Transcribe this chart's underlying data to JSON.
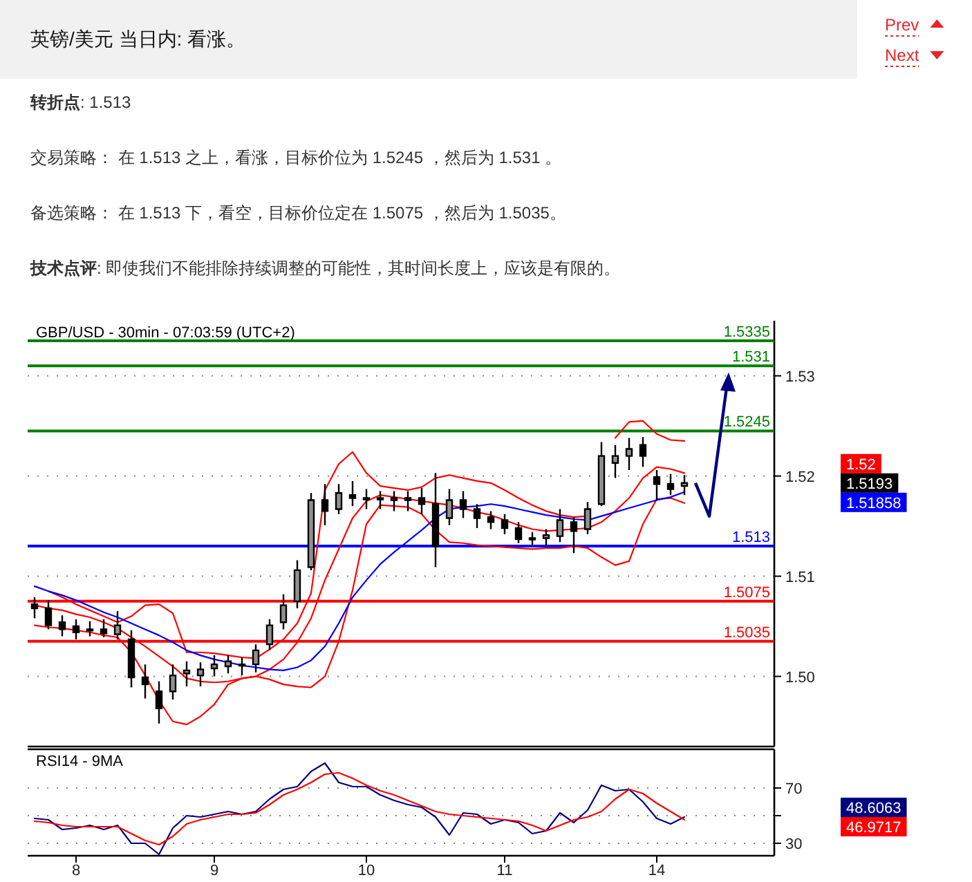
{
  "chart_data": [
    {
      "type": "other",
      "title": "英镑/美元 当日内: 看涨。",
      "annotations": [
        "**转折点**: 1.513",
        "交易策略： 在 1.513 之上，看涨，目标价位为 1.5245 ，然后为 1.531 。",
        "备选策略： 在 1.513 下，看空，目标价位定在 1.5075 ，然后为 1.5035。",
        "**技术点评**: 即使我们不能排除持续调整的可能性，其时间长度上，应该是有限的。"
      ]
    },
    {
      "type": "other",
      "annotations": [
        "Prev",
        "Next"
      ]
    },
    {
      "type": "candlestick",
      "title": "GBP/USD - 30min - 07:03:59 (UTC+2)",
      "color": "#000000",
      "categories": [
        null,
        null,
        null,
        null,
        null,
        null,
        null,
        null,
        null,
        null,
        null,
        null,
        null,
        null,
        null,
        null,
        null,
        null,
        null,
        null,
        null,
        null,
        null,
        null,
        null,
        null,
        null,
        null,
        null,
        null,
        null,
        null,
        null,
        null,
        null,
        null,
        null,
        null,
        null,
        null,
        null,
        null,
        null,
        null,
        null,
        null,
        null,
        null
      ],
      "ohlc": [
        [
          1.5072,
          1.5079,
          1.5058,
          1.5068
        ],
        [
          1.5068,
          1.5076,
          1.5047,
          1.5051
        ],
        [
          1.5054,
          1.5061,
          1.504,
          1.5047
        ],
        [
          1.505,
          1.5057,
          1.5037,
          1.5044
        ],
        [
          1.5047,
          1.5055,
          1.504,
          1.5046
        ],
        [
          1.5047,
          1.5057,
          1.5039,
          1.5043
        ],
        [
          1.5042,
          1.5065,
          1.5037,
          1.5051
        ],
        [
          1.5037,
          1.5046,
          1.4989,
          1.4999
        ],
        [
          1.4999,
          1.5012,
          1.4978,
          1.4992
        ],
        [
          1.4985,
          1.4995,
          1.4953,
          1.4968
        ],
        [
          1.4985,
          1.5012,
          1.4977,
          1.5001
        ],
        [
          1.5003,
          1.5015,
          1.499,
          1.5006
        ],
        [
          1.5001,
          1.5014,
          1.499,
          1.5007
        ],
        [
          1.5008,
          1.5021,
          1.5,
          1.5012
        ],
        [
          1.501,
          1.5021,
          1.5003,
          1.5015
        ],
        [
          1.5012,
          1.5019,
          1.5001,
          1.5011
        ],
        [
          1.5012,
          1.5032,
          1.5004,
          1.5026
        ],
        [
          1.5032,
          1.5057,
          1.5026,
          1.5051
        ],
        [
          1.5054,
          1.5082,
          1.5047,
          1.5071
        ],
        [
          1.5075,
          1.5116,
          1.5068,
          1.5106
        ],
        [
          1.5109,
          1.5183,
          1.5106,
          1.5176
        ],
        [
          1.5176,
          1.5192,
          1.5151,
          1.5165
        ],
        [
          1.5167,
          1.5192,
          1.5162,
          1.5183
        ],
        [
          1.5181,
          1.5195,
          1.517,
          1.5178
        ],
        [
          1.5177,
          1.5187,
          1.5167,
          1.5178
        ],
        [
          1.5178,
          1.5185,
          1.5167,
          1.5177
        ],
        [
          1.5176,
          1.5185,
          1.5165,
          1.5178
        ],
        [
          1.5178,
          1.5185,
          1.5165,
          1.5176
        ],
        [
          1.5178,
          1.5188,
          1.5162,
          1.5172
        ],
        [
          1.5172,
          1.5203,
          1.5109,
          1.513
        ],
        [
          1.5158,
          1.5187,
          1.5151,
          1.5176
        ],
        [
          1.5176,
          1.5185,
          1.5158,
          1.5167
        ],
        [
          1.5167,
          1.5172,
          1.5148,
          1.5158
        ],
        [
          1.5159,
          1.5165,
          1.5147,
          1.5154
        ],
        [
          1.5156,
          1.5162,
          1.5142,
          1.5148
        ],
        [
          1.5148,
          1.5154,
          1.5133,
          1.5137
        ],
        [
          1.5137,
          1.5144,
          1.5131,
          1.5138
        ],
        [
          1.5138,
          1.5147,
          1.5131,
          1.5141
        ],
        [
          1.514,
          1.5167,
          1.5134,
          1.5156
        ],
        [
          1.5154,
          1.5159,
          1.5123,
          1.5145
        ],
        [
          1.5147,
          1.5174,
          1.5142,
          1.5167
        ],
        [
          1.5172,
          1.5234,
          1.517,
          1.522
        ],
        [
          1.5213,
          1.5231,
          1.5198,
          1.522
        ],
        [
          1.522,
          1.5238,
          1.5206,
          1.5227
        ],
        [
          1.5231,
          1.5239,
          1.5209,
          1.522
        ],
        [
          1.5199,
          1.5206,
          1.5176,
          1.5192
        ],
        [
          1.5192,
          1.5202,
          1.5181,
          1.5187
        ],
        [
          1.519,
          1.5201,
          1.5181,
          1.5193
        ]
      ],
      "series": [
        {
          "type": "line",
          "color": "#ff0000",
          "values": [
            null,
            1.5085,
            1.5079,
            1.5072,
            1.5066,
            1.506,
            1.5054,
            1.506,
            1.5071,
            1.5072,
            1.5063,
            1.5024,
            1.5024,
            1.5023,
            1.5021,
            1.5019,
            1.5018,
            1.5027,
            1.5037,
            1.5053,
            1.5083,
            1.5186,
            1.5212,
            1.5224,
            1.5203,
            1.519,
            1.5188,
            1.5186,
            1.5189,
            1.5198,
            1.5201,
            1.5198,
            1.5195,
            1.5193,
            1.5186,
            1.5178,
            1.5171,
            1.5165,
            1.5161,
            1.5159,
            1.516,
            null,
            1.5238,
            1.5254,
            1.5255,
            1.5242,
            1.5236,
            1.5235
          ]
        },
        {
          "type": "line",
          "color": "#ff0000",
          "values": [
            1.5071,
            1.5068,
            1.5066,
            1.5062,
            1.5059,
            1.5054,
            1.5048,
            1.5039,
            1.503,
            1.502,
            1.501,
            1.4998,
            1.4995,
            1.4994,
            1.4995,
            1.4998,
            1.5,
            1.5007,
            1.5017,
            1.5034,
            1.5058,
            1.5096,
            1.5127,
            1.5158,
            1.5175,
            1.5181,
            1.5179,
            1.5177,
            1.5175,
            1.5173,
            1.5171,
            1.5168,
            1.5164,
            1.5161,
            1.5156,
            1.5151,
            1.5147,
            1.5145,
            1.5146,
            1.5147,
            1.5148,
            1.5154,
            1.5165,
            1.5178,
            1.5198,
            1.5209,
            1.5207,
            1.5203
          ]
        },
        {
          "type": "line",
          "color": "#ff0000",
          "values": [
            1.5051,
            1.5049,
            1.5048,
            1.5046,
            1.5044,
            1.5041,
            1.5039,
            1.5024,
            1.5001,
            1.4976,
            1.4955,
            1.4952,
            1.496,
            1.4972,
            1.4992,
            1.4998,
            1.5,
            1.4997,
            1.4992,
            1.499,
            1.4989,
            1.5,
            1.5035,
            1.5086,
            1.5152,
            1.5171,
            1.517,
            1.5169,
            1.5162,
            1.5146,
            1.5134,
            1.5133,
            1.5131,
            1.513,
            1.5129,
            1.5128,
            1.5127,
            1.5128,
            1.5128,
            1.513,
            1.5128,
            1.5119,
            1.5111,
            1.5115,
            1.5152,
            1.5177,
            1.5178,
            1.5173
          ]
        },
        {
          "type": "line",
          "color": "#0000ff",
          "values": [
            1.509,
            1.5085,
            1.5081,
            1.5076,
            1.507,
            1.5064,
            1.5059,
            1.5053,
            1.5047,
            1.5041,
            1.5034,
            1.5026,
            1.5021,
            1.5017,
            1.5014,
            1.5011,
            1.5009,
            1.5007,
            1.5006,
            1.5009,
            1.5016,
            1.503,
            1.5053,
            1.5079,
            1.5096,
            1.5112,
            1.5124,
            1.5135,
            1.5146,
            1.5158,
            1.5167,
            1.5169,
            1.517,
            1.5172,
            1.517,
            1.5167,
            1.5164,
            1.5161,
            1.5159,
            1.5157,
            1.5156,
            1.516,
            1.5164,
            1.5168,
            1.5172,
            1.5176,
            1.5179,
            1.5184
          ]
        }
      ],
      "ylim": [
        1.493,
        1.5355
      ],
      "yticks": [
        {
          "value": 1.5,
          "label": "1.50"
        },
        1.51,
        1.52,
        1.53
      ],
      "grid": "y",
      "ref_lines": [
        {
          "axis": "y",
          "value": 1.5335,
          "label": "1.5335",
          "color": "#008000"
        },
        {
          "axis": "y",
          "value": 1.531,
          "label": "1.531",
          "color": "#008000"
        },
        {
          "axis": "y",
          "value": 1.5245,
          "label": "1.5245",
          "color": "#008000"
        },
        {
          "axis": "y",
          "value": 1.513,
          "label": "1.513",
          "color": "#0000ff"
        },
        {
          "axis": "y",
          "value": 1.5075,
          "label": "1.5075",
          "color": "#ff0000"
        },
        {
          "axis": "y",
          "value": 1.5035,
          "label": "1.5035",
          "color": "#ff0000"
        }
      ],
      "annotations": [
        "1.52",
        "1.5193",
        "1.51858"
      ]
    },
    {
      "type": "line",
      "title": "RSI14 - 9MA",
      "categories": [
        null,
        null,
        null,
        "8",
        null,
        null,
        null,
        null,
        null,
        null,
        null,
        null,
        null,
        "9",
        null,
        null,
        null,
        null,
        null,
        null,
        null,
        null,
        null,
        null,
        "10",
        null,
        null,
        null,
        null,
        null,
        null,
        null,
        null,
        null,
        "11",
        null,
        null,
        null,
        null,
        null,
        null,
        null,
        null,
        null,
        null,
        "14",
        null,
        null
      ],
      "series": [
        {
          "color": "#000080",
          "values": [
            48,
            47,
            40,
            41,
            43,
            40,
            43,
            30,
            30,
            22,
            41,
            50,
            49,
            51,
            53,
            51,
            53,
            62,
            69,
            71,
            82,
            88,
            74,
            71,
            71,
            65,
            61,
            58,
            56,
            49,
            36,
            52,
            51,
            44,
            47,
            45,
            37,
            39,
            52,
            45,
            54,
            72,
            68,
            69,
            60,
            48,
            44,
            49
          ]
        },
        {
          "color": "#ff0000",
          "values": [
            46,
            45,
            43,
            42,
            42,
            42,
            42,
            37,
            32,
            29,
            35,
            44,
            47,
            49,
            51,
            51,
            52,
            58,
            65,
            69,
            74,
            80,
            81,
            77,
            72,
            68,
            65,
            61,
            57,
            53,
            51,
            50,
            49,
            48,
            47,
            46,
            43,
            39,
            43,
            47,
            49,
            53,
            62,
            69,
            66,
            59,
            53,
            47
          ]
        }
      ],
      "ylim": [
        21,
        98
      ],
      "yticks": [
        70,
        {
          "value": 50,
          "label": null
        },
        30
      ],
      "grid": "y",
      "annotations": [
        "48.6063",
        "46.9717"
      ]
    }
  ]
}
